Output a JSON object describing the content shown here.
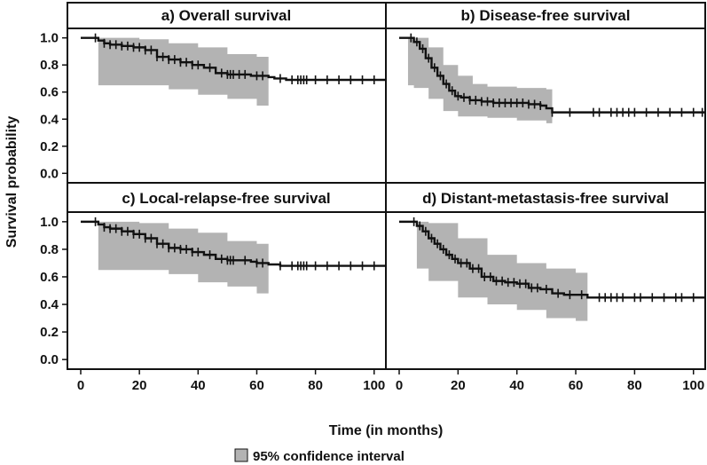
{
  "figure": {
    "ylabel": "Survival probability",
    "xlabel": "Time (in months)",
    "legend_label": "95% confidence interval",
    "x_ticks": [
      "0",
      "20",
      "40",
      "60",
      "80",
      "100"
    ],
    "y_ticks": [
      "0.0",
      "0.2",
      "0.4",
      "0.6",
      "0.8",
      "1.0"
    ],
    "ci_color": "#b3b3b3",
    "line_color": "#111111"
  },
  "chart_data": [
    {
      "type": "line",
      "title": "a) Overall survival",
      "xlim": [
        0,
        104
      ],
      "ylim": [
        -0.07,
        1.07
      ],
      "series": [
        {
          "name": "estimate",
          "x": [
            0,
            4,
            6,
            8,
            10,
            14,
            18,
            22,
            26,
            30,
            34,
            38,
            42,
            46,
            50,
            54,
            58,
            60,
            64,
            66,
            70,
            104
          ],
          "y": [
            1.0,
            1.0,
            0.98,
            0.96,
            0.95,
            0.94,
            0.93,
            0.91,
            0.86,
            0.84,
            0.82,
            0.8,
            0.78,
            0.74,
            0.73,
            0.73,
            0.72,
            0.72,
            0.71,
            0.7,
            0.69,
            0.69
          ]
        },
        {
          "name": "ci_upper",
          "x": [
            6,
            10,
            20,
            30,
            40,
            50,
            60,
            64
          ],
          "y": [
            1.0,
            1.0,
            0.99,
            0.96,
            0.93,
            0.88,
            0.86,
            0.86
          ]
        },
        {
          "name": "ci_lower",
          "x": [
            6,
            10,
            20,
            30,
            40,
            50,
            60,
            64
          ],
          "y": [
            0.65,
            0.65,
            0.65,
            0.65,
            0.62,
            0.58,
            0.55,
            0.5
          ]
        }
      ],
      "censor_x": [
        5,
        8,
        10,
        12,
        14,
        16,
        18,
        20,
        22,
        24,
        26,
        28,
        30,
        32,
        34,
        36,
        38,
        40,
        44,
        48,
        50,
        51,
        52,
        54,
        56,
        60,
        62,
        68,
        72,
        74,
        75,
        76,
        77,
        80,
        84,
        88,
        92,
        96,
        100
      ]
    },
    {
      "type": "line",
      "title": "b) Disease-free survival",
      "xlim": [
        0,
        104
      ],
      "ylim": [
        -0.07,
        1.07
      ],
      "series": [
        {
          "name": "estimate",
          "x": [
            0,
            3,
            5,
            7,
            9,
            11,
            13,
            15,
            17,
            19,
            21,
            24,
            28,
            32,
            36,
            40,
            44,
            48,
            50,
            52,
            104
          ],
          "y": [
            1.0,
            1.0,
            0.97,
            0.92,
            0.85,
            0.78,
            0.72,
            0.66,
            0.61,
            0.57,
            0.56,
            0.54,
            0.53,
            0.52,
            0.52,
            0.52,
            0.51,
            0.5,
            0.48,
            0.45,
            0.45
          ]
        },
        {
          "name": "ci_upper",
          "x": [
            3,
            5,
            10,
            15,
            20,
            25,
            30,
            40,
            50,
            52
          ],
          "y": [
            1.0,
            1.0,
            0.93,
            0.8,
            0.72,
            0.66,
            0.64,
            0.63,
            0.62,
            0.62
          ]
        },
        {
          "name": "ci_lower",
          "x": [
            3,
            5,
            10,
            15,
            20,
            25,
            30,
            40,
            50,
            52
          ],
          "y": [
            0.65,
            0.65,
            0.63,
            0.55,
            0.46,
            0.42,
            0.42,
            0.41,
            0.39,
            0.37
          ]
        }
      ],
      "censor_x": [
        4,
        6,
        8,
        10,
        12,
        14,
        16,
        18,
        20,
        22,
        24,
        26,
        28,
        30,
        32,
        34,
        36,
        38,
        40,
        42,
        44,
        46,
        48,
        52,
        58,
        66,
        68,
        72,
        74,
        76,
        78,
        80,
        84,
        88,
        92,
        96,
        100,
        103
      ]
    },
    {
      "type": "line",
      "title": "c) Local-relapse-free survival",
      "xlim": [
        0,
        104
      ],
      "ylim": [
        -0.07,
        1.07
      ],
      "series": [
        {
          "name": "estimate",
          "x": [
            0,
            4,
            6,
            8,
            10,
            14,
            18,
            22,
            26,
            30,
            34,
            38,
            42,
            46,
            50,
            54,
            58,
            60,
            64,
            68,
            104
          ],
          "y": [
            1.0,
            1.0,
            0.98,
            0.96,
            0.95,
            0.93,
            0.91,
            0.88,
            0.84,
            0.81,
            0.8,
            0.78,
            0.76,
            0.73,
            0.72,
            0.72,
            0.71,
            0.7,
            0.69,
            0.68,
            0.68
          ]
        },
        {
          "name": "ci_upper",
          "x": [
            6,
            10,
            20,
            30,
            40,
            50,
            60,
            64
          ],
          "y": [
            1.0,
            1.0,
            0.99,
            0.95,
            0.92,
            0.86,
            0.84,
            0.84
          ]
        },
        {
          "name": "ci_lower",
          "x": [
            6,
            10,
            20,
            30,
            40,
            50,
            60,
            64
          ],
          "y": [
            0.65,
            0.65,
            0.65,
            0.65,
            0.62,
            0.56,
            0.53,
            0.48
          ]
        }
      ],
      "censor_x": [
        5,
        8,
        10,
        12,
        14,
        16,
        18,
        20,
        22,
        24,
        26,
        28,
        30,
        32,
        34,
        36,
        38,
        40,
        44,
        48,
        50,
        51,
        52,
        56,
        60,
        62,
        68,
        72,
        74,
        75,
        76,
        77,
        80,
        84,
        88,
        92,
        96,
        100
      ]
    },
    {
      "type": "line",
      "title": "d) Distant-metastasis-free survival",
      "xlim": [
        0,
        104
      ],
      "ylim": [
        -0.07,
        1.07
      ],
      "series": [
        {
          "name": "estimate",
          "x": [
            0,
            4,
            6,
            8,
            10,
            12,
            14,
            16,
            18,
            20,
            24,
            28,
            32,
            36,
            40,
            44,
            48,
            52,
            56,
            64,
            104
          ],
          "y": [
            1.0,
            1.0,
            0.97,
            0.93,
            0.88,
            0.84,
            0.8,
            0.76,
            0.73,
            0.7,
            0.66,
            0.6,
            0.57,
            0.56,
            0.55,
            0.52,
            0.51,
            0.48,
            0.47,
            0.45,
            0.45
          ]
        },
        {
          "name": "ci_upper",
          "x": [
            6,
            10,
            20,
            30,
            40,
            50,
            60,
            64
          ],
          "y": [
            1.0,
            0.99,
            0.88,
            0.76,
            0.7,
            0.66,
            0.63,
            0.63
          ]
        },
        {
          "name": "ci_lower",
          "x": [
            6,
            10,
            20,
            30,
            40,
            50,
            60,
            64
          ],
          "y": [
            0.68,
            0.66,
            0.57,
            0.45,
            0.4,
            0.36,
            0.3,
            0.28
          ]
        }
      ],
      "censor_x": [
        5,
        7,
        9,
        11,
        13,
        15,
        17,
        19,
        21,
        23,
        25,
        27,
        29,
        31,
        33,
        35,
        37,
        39,
        41,
        43,
        45,
        47,
        50,
        54,
        58,
        62,
        68,
        70,
        72,
        74,
        76,
        80,
        82,
        86,
        90,
        94,
        96,
        100
      ]
    }
  ]
}
